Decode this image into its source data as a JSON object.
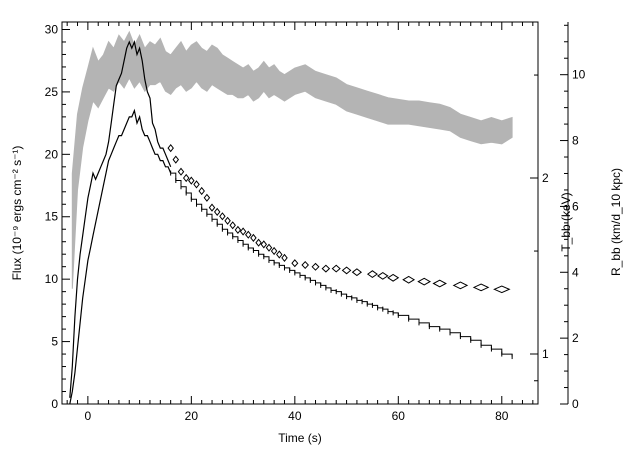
{
  "chart_data": {
    "type": "line",
    "xlabel": "Time (s)",
    "ylabel_left": "Flux (10⁻⁹ ergs cm⁻² s⁻¹)",
    "ylabel_right_inner": "T_bb (keV)",
    "ylabel_right_outer": "R_bb (km/d_10 kpc)",
    "xlim": [
      -5,
      87
    ],
    "ylim_left": [
      0,
      30.6
    ],
    "ylim_right_radius": [
      0,
      11.6
    ],
    "temperature_axis": {
      "scale": "log",
      "ticks": [
        1,
        2
      ],
      "tick_labels": [
        "1",
        "2"
      ]
    },
    "x_ticks": [
      0,
      20,
      40,
      60,
      80
    ],
    "y_left_ticks": [
      0,
      5,
      10,
      15,
      20,
      25,
      30
    ],
    "y_right_ticks": [
      0,
      2,
      4,
      6,
      8,
      10
    ],
    "series": [
      {
        "role": "flux_upper",
        "x": [
          -3.5,
          -3,
          -2.5,
          -2,
          -1.5,
          -1,
          -0.5,
          0,
          0.5,
          1,
          1.5,
          2,
          2.5,
          3,
          3.5,
          4,
          4.5,
          5,
          5.5,
          6,
          6.5,
          7,
          7.5,
          8,
          8.5,
          9,
          9.5,
          10,
          10.5,
          11,
          11.5,
          12,
          12.5,
          13,
          13.5,
          14,
          14.5,
          15,
          15.5,
          16
        ],
        "y": [
          0.5,
          3,
          7,
          10,
          12,
          13.5,
          15,
          16.5,
          17.5,
          18.5,
          18,
          18.5,
          19,
          19.5,
          20,
          21,
          22.5,
          24,
          25.5,
          26,
          26.5,
          27.5,
          28.5,
          29,
          28.5,
          29,
          28,
          28.5,
          27.5,
          26,
          25,
          24.5,
          22.5,
          22,
          21,
          20.5,
          20.5,
          20,
          19.5,
          19
        ]
      },
      {
        "role": "flux_lower",
        "x": [
          -3.5,
          -3,
          -2.5,
          -2,
          -1.5,
          -1,
          -0.5,
          0,
          0.5,
          1,
          1.5,
          2,
          2.5,
          3,
          3.5,
          4,
          4.5,
          5,
          5.5,
          6,
          6.5,
          7,
          7.5,
          8,
          8.5,
          9,
          9.5,
          10,
          10.5,
          11,
          11.5,
          12,
          12.5,
          13,
          13.5,
          14,
          14.5,
          15,
          15.5,
          16
        ],
        "y": [
          0,
          1,
          2.5,
          4.5,
          6.5,
          8.5,
          10,
          11.5,
          12.5,
          13.5,
          14.5,
          15.5,
          16.5,
          17.5,
          18.5,
          19.5,
          20,
          20.5,
          21,
          21.5,
          21.5,
          22,
          22.5,
          23,
          23,
          23.5,
          22.5,
          23,
          22,
          21.5,
          21.5,
          21,
          20.5,
          20,
          20,
          19.5,
          19.5,
          19,
          19,
          18.5
        ]
      },
      {
        "role": "flux_step",
        "x": [
          16,
          17,
          18,
          19,
          20,
          21,
          22,
          23,
          24,
          25,
          26,
          27,
          28,
          29,
          30,
          31,
          32,
          33,
          34,
          35,
          36,
          37,
          38,
          39,
          40,
          41,
          42,
          43,
          44,
          45,
          46,
          47,
          48,
          49,
          50,
          51,
          52,
          53,
          54,
          55,
          56,
          57,
          58,
          59,
          60,
          62,
          64,
          66,
          68,
          70,
          72,
          74,
          76,
          78,
          80,
          82
        ],
        "y": [
          18.5,
          17.9,
          17.4,
          16.9,
          16.4,
          16.0,
          15.6,
          15.2,
          14.8,
          14.4,
          14.0,
          13.7,
          13.4,
          13.1,
          12.8,
          12.5,
          12.3,
          12.0,
          11.8,
          11.5,
          11.3,
          11.1,
          10.9,
          10.7,
          10.5,
          10.3,
          10.1,
          9.9,
          9.7,
          9.5,
          9.3,
          9.1,
          9.0,
          8.8,
          8.6,
          8.5,
          8.3,
          8.2,
          8.0,
          7.9,
          7.7,
          7.6,
          7.4,
          7.3,
          7.1,
          6.8,
          6.5,
          6.2,
          6.0,
          5.7,
          5.4,
          5.1,
          4.7,
          4.4,
          4.0,
          3.8
        ]
      },
      {
        "role": "temperature_keV",
        "x": [
          16,
          17,
          18,
          19,
          20,
          21,
          22,
          23,
          24,
          25,
          26,
          27,
          28,
          29,
          30,
          31,
          32,
          33,
          34,
          35,
          36,
          37,
          38,
          40,
          42,
          44,
          46,
          48,
          50,
          52,
          55,
          57,
          59,
          62,
          65,
          68,
          72,
          76,
          80
        ],
        "y": [
          2.25,
          2.15,
          2.05,
          2.0,
          1.98,
          1.95,
          1.9,
          1.85,
          1.78,
          1.75,
          1.72,
          1.69,
          1.66,
          1.63,
          1.62,
          1.6,
          1.58,
          1.55,
          1.54,
          1.52,
          1.5,
          1.48,
          1.46,
          1.43,
          1.42,
          1.41,
          1.4,
          1.4,
          1.39,
          1.38,
          1.37,
          1.36,
          1.35,
          1.34,
          1.33,
          1.32,
          1.31,
          1.3,
          1.29
        ]
      },
      {
        "role": "radius_band_upper",
        "x": [
          -3,
          -2,
          -1,
          0,
          1,
          2,
          3,
          4,
          5,
          6,
          7,
          8,
          9,
          10,
          11,
          12,
          13,
          14,
          15,
          16,
          17,
          18,
          19,
          20,
          21,
          22,
          23,
          24,
          25,
          26,
          27,
          28,
          29,
          30,
          31,
          32,
          33,
          34,
          35,
          36,
          37,
          38,
          40,
          42,
          44,
          46,
          48,
          50,
          52,
          54,
          56,
          58,
          60,
          62,
          64,
          66,
          68,
          70,
          72,
          74,
          76,
          78,
          80,
          82
        ],
        "y": [
          7,
          8.8,
          9.6,
          10.2,
          10.8,
          10.4,
          10.6,
          11.0,
          10.8,
          11.2,
          11.0,
          11.3,
          10.9,
          11.2,
          10.8,
          11.0,
          10.9,
          11.1,
          10.7,
          10.6,
          10.8,
          11.0,
          10.7,
          10.9,
          11.0,
          10.8,
          10.7,
          10.9,
          10.8,
          10.6,
          10.5,
          10.4,
          10.3,
          10.2,
          10.3,
          10.1,
          10.2,
          10.4,
          10.2,
          10.3,
          10.1,
          10.0,
          10.2,
          10.3,
          10.1,
          10.0,
          9.9,
          9.7,
          9.6,
          9.5,
          9.4,
          9.3,
          9.25,
          9.2,
          9.2,
          9.15,
          9.1,
          9.0,
          8.8,
          8.7,
          8.6,
          8.7,
          8.6,
          8.7
        ]
      },
      {
        "role": "radius_band_lower",
        "x": [
          -3,
          -2,
          -1,
          0,
          1,
          2,
          3,
          4,
          5,
          6,
          7,
          8,
          9,
          10,
          11,
          12,
          13,
          14,
          15,
          16,
          17,
          18,
          19,
          20,
          21,
          22,
          23,
          24,
          25,
          26,
          27,
          28,
          29,
          30,
          31,
          32,
          33,
          34,
          35,
          36,
          37,
          38,
          40,
          42,
          44,
          46,
          48,
          50,
          52,
          54,
          56,
          58,
          60,
          62,
          64,
          66,
          68,
          70,
          72,
          74,
          76,
          78,
          80,
          82
        ],
        "y": [
          3.5,
          6.5,
          7.8,
          8.6,
          9.2,
          9.0,
          9.3,
          9.6,
          9.5,
          9.8,
          9.6,
          9.9,
          9.6,
          9.8,
          9.5,
          9.7,
          9.7,
          9.8,
          9.5,
          9.4,
          9.6,
          9.7,
          9.5,
          9.6,
          9.8,
          9.6,
          9.5,
          9.7,
          9.6,
          9.5,
          9.4,
          9.4,
          9.3,
          9.3,
          9.4,
          9.2,
          9.3,
          9.5,
          9.3,
          9.4,
          9.3,
          9.2,
          9.4,
          9.5,
          9.3,
          9.2,
          9.1,
          8.9,
          8.8,
          8.7,
          8.6,
          8.5,
          8.5,
          8.5,
          8.45,
          8.4,
          8.35,
          8.3,
          8.1,
          8.0,
          7.9,
          7.95,
          7.9,
          8.1
        ]
      }
    ],
    "grid": false,
    "colors": {
      "flux": "#000000",
      "radius_band": "#b4b4b4",
      "temperature": "#000000",
      "axes": "#000000"
    }
  }
}
